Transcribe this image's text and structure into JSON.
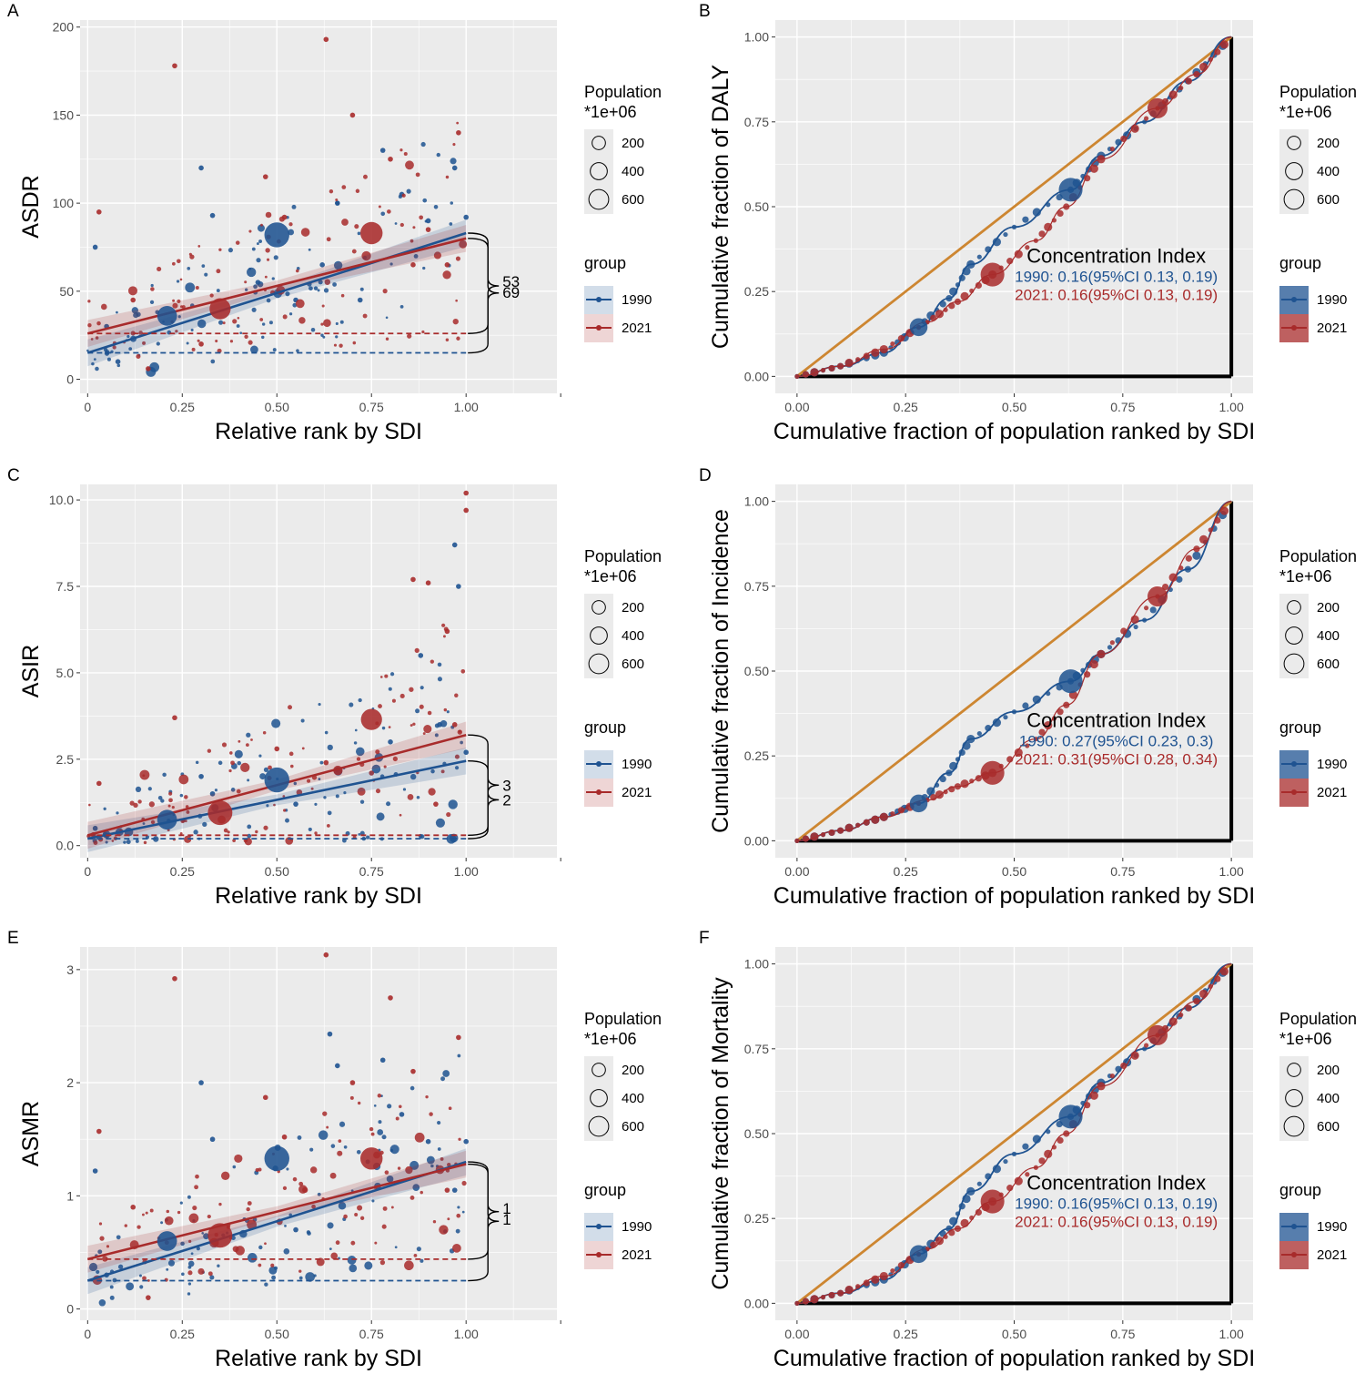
{
  "colors": {
    "1990": "#1f5391",
    "2021": "#a82b2b",
    "equality": "#cd8631",
    "bg": "#ebebeb"
  },
  "legend": {
    "population_title_line1": "Population",
    "population_title_line2": "*1e+06",
    "population_sizes": [
      "200",
      "400",
      "600"
    ],
    "group_title": "group",
    "groups": [
      "1990",
      "2021"
    ]
  },
  "chart_data": [
    {
      "panel": "A",
      "type": "scatter",
      "ylabel": "ASDR",
      "xlabel": "Relative rank by SDI",
      "xlim": [
        -0.02,
        1.24
      ],
      "ylim": [
        -8,
        204
      ],
      "xticks": [
        0,
        0.25,
        0.5,
        0.75,
        1.0
      ],
      "xtick_labels": [
        "0",
        "0.25",
        "0.50",
        "0.75",
        "1.00"
      ],
      "yticks": [
        0,
        50,
        100,
        150,
        200
      ],
      "ytick_labels": [
        "0",
        "50",
        "100",
        "150",
        "200"
      ],
      "regression": {
        "1990": {
          "x": [
            0,
            1
          ],
          "y": [
            15,
            83
          ]
        },
        "2021": {
          "x": [
            0,
            1
          ],
          "y": [
            26,
            80
          ]
        }
      },
      "dashed": {
        "1990": 15,
        "2021": 26
      },
      "brace_labels": [
        "53",
        "69"
      ],
      "big_points": [
        {
          "group": "1990",
          "x": 0.21,
          "y": 36,
          "pop": 350
        },
        {
          "group": "1990",
          "x": 0.5,
          "y": 82,
          "pop": 650
        },
        {
          "group": "2021",
          "x": 0.35,
          "y": 40,
          "pop": 420
        },
        {
          "group": "2021",
          "x": 0.75,
          "y": 83,
          "pop": 480
        }
      ],
      "sample_points": {
        "1990": [
          [
            0.02,
            75
          ],
          [
            0.05,
            30
          ],
          [
            0.08,
            10
          ],
          [
            0.3,
            120
          ],
          [
            0.33,
            93
          ],
          [
            0.45,
            55
          ],
          [
            0.55,
            45
          ],
          [
            0.62,
            65
          ],
          [
            0.66,
            100
          ],
          [
            0.72,
            45
          ],
          [
            0.78,
            130
          ],
          [
            0.83,
            105
          ],
          [
            0.9,
            90
          ],
          [
            0.97,
            120
          ],
          [
            1.0,
            92
          ]
        ],
        "2021": [
          [
            0.03,
            95
          ],
          [
            0.12,
            45
          ],
          [
            0.16,
            6
          ],
          [
            0.23,
            178
          ],
          [
            0.3,
            20
          ],
          [
            0.47,
            115
          ],
          [
            0.52,
            92
          ],
          [
            0.63,
            193
          ],
          [
            0.7,
            150
          ],
          [
            0.8,
            125
          ],
          [
            0.86,
            65
          ],
          [
            0.9,
            85
          ],
          [
            0.95,
            65
          ],
          [
            0.98,
            140
          ]
        ]
      }
    },
    {
      "panel": "B",
      "type": "line",
      "ylabel": "Cumulative fraction of DALY",
      "xlabel": "Cumulative fraction of population ranked by SDI",
      "xlim": [
        -0.05,
        1.05
      ],
      "ylim": [
        -0.05,
        1.05
      ],
      "xticks": [
        0,
        0.25,
        0.5,
        0.75,
        1.0
      ],
      "xtick_labels": [
        "0.00",
        "0.25",
        "0.50",
        "0.75",
        "1.00"
      ],
      "yticks": [
        0,
        0.25,
        0.5,
        0.75,
        1.0
      ],
      "ytick_labels": [
        "0.00",
        "0.25",
        "0.50",
        "0.75",
        "1.00"
      ],
      "ci_title": "Concentration Index",
      "ci_1990": "1990: 0.16(95%CI 0.13, 0.19)",
      "ci_2021": "2021: 0.16(95%CI 0.13, 0.19)",
      "curve_1990": [
        [
          0,
          0
        ],
        [
          0.1,
          0.03
        ],
        [
          0.2,
          0.07
        ],
        [
          0.28,
          0.145
        ],
        [
          0.35,
          0.23
        ],
        [
          0.4,
          0.33
        ],
        [
          0.5,
          0.44
        ],
        [
          0.63,
          0.55
        ],
        [
          0.7,
          0.65
        ],
        [
          0.8,
          0.75
        ],
        [
          0.9,
          0.87
        ],
        [
          1.0,
          1.0
        ]
      ],
      "curve_2021": [
        [
          0,
          0
        ],
        [
          0.1,
          0.03
        ],
        [
          0.2,
          0.08
        ],
        [
          0.3,
          0.16
        ],
        [
          0.37,
          0.22
        ],
        [
          0.45,
          0.3
        ],
        [
          0.55,
          0.4
        ],
        [
          0.62,
          0.5
        ],
        [
          0.7,
          0.64
        ],
        [
          0.83,
          0.79
        ],
        [
          0.92,
          0.89
        ],
        [
          1.0,
          1.0
        ]
      ],
      "big_points": [
        {
          "group": "1990",
          "x": 0.28,
          "y": 0.145,
          "pop": 300
        },
        {
          "group": "1990",
          "x": 0.63,
          "y": 0.55,
          "pop": 650
        },
        {
          "group": "2021",
          "x": 0.45,
          "y": 0.3,
          "pop": 650
        },
        {
          "group": "2021",
          "x": 0.83,
          "y": 0.79,
          "pop": 420
        }
      ]
    },
    {
      "panel": "C",
      "type": "scatter",
      "ylabel": "ASIR",
      "xlabel": "Relative rank by SDI",
      "xlim": [
        -0.02,
        1.24
      ],
      "ylim": [
        -0.35,
        10.45
      ],
      "xticks": [
        0,
        0.25,
        0.5,
        0.75,
        1.0
      ],
      "xtick_labels": [
        "0",
        "0.25",
        "0.50",
        "0.75",
        "1.00"
      ],
      "yticks": [
        0,
        2.5,
        5,
        7.5,
        10
      ],
      "ytick_labels": [
        "0.0",
        "2.5",
        "5.0",
        "7.5",
        "10.0"
      ],
      "regression": {
        "1990": {
          "x": [
            0,
            1
          ],
          "y": [
            0.2,
            2.45
          ]
        },
        "2021": {
          "x": [
            0,
            1
          ],
          "y": [
            0.3,
            3.2
          ]
        }
      },
      "dashed": {
        "1990": 0.2,
        "2021": 0.3
      },
      "brace_labels": [
        "3",
        "2"
      ],
      "big_points": [
        {
          "group": "1990",
          "x": 0.21,
          "y": 0.75,
          "pop": 350
        },
        {
          "group": "1990",
          "x": 0.5,
          "y": 1.9,
          "pop": 650
        },
        {
          "group": "2021",
          "x": 0.35,
          "y": 0.95,
          "pop": 620
        },
        {
          "group": "2021",
          "x": 0.75,
          "y": 3.65,
          "pop": 420
        }
      ],
      "sample_points": {
        "1990": [
          [
            0.02,
            0.5
          ],
          [
            0.05,
            0.3
          ],
          [
            0.3,
            2.0
          ],
          [
            0.33,
            1.5
          ],
          [
            0.55,
            1.2
          ],
          [
            0.66,
            2.2
          ],
          [
            0.8,
            3.0
          ],
          [
            0.88,
            5.5
          ],
          [
            0.93,
            3.5
          ],
          [
            0.97,
            8.7
          ],
          [
            0.98,
            7.5
          ],
          [
            1.0,
            2.7
          ]
        ],
        "2021": [
          [
            0.03,
            1.8
          ],
          [
            0.23,
            3.7
          ],
          [
            0.5,
            2.8
          ],
          [
            0.63,
            2.4
          ],
          [
            0.75,
            2.1
          ],
          [
            0.86,
            7.7
          ],
          [
            0.9,
            7.6
          ],
          [
            0.95,
            6.2
          ],
          [
            1.0,
            10.2
          ],
          [
            1.0,
            9.7
          ],
          [
            0.97,
            3.5
          ],
          [
            0.92,
            1.2
          ]
        ]
      }
    },
    {
      "panel": "D",
      "type": "line",
      "ylabel": "Cumulative fraction of Incidence",
      "xlabel": "Cumulative fraction of population ranked by SDI",
      "xlim": [
        -0.05,
        1.05
      ],
      "ylim": [
        -0.05,
        1.05
      ],
      "xticks": [
        0,
        0.25,
        0.5,
        0.75,
        1.0
      ],
      "xtick_labels": [
        "0.00",
        "0.25",
        "0.50",
        "0.75",
        "1.00"
      ],
      "yticks": [
        0,
        0.25,
        0.5,
        0.75,
        1.0
      ],
      "ytick_labels": [
        "0.00",
        "0.25",
        "0.50",
        "0.75",
        "1.00"
      ],
      "ci_title": "Concentration Index",
      "ci_1990": "1990: 0.27(95%CI 0.23, 0.3)",
      "ci_2021": "2021: 0.31(95%CI 0.28, 0.34)",
      "curve_1990": [
        [
          0,
          0
        ],
        [
          0.1,
          0.03
        ],
        [
          0.2,
          0.07
        ],
        [
          0.28,
          0.11
        ],
        [
          0.35,
          0.2
        ],
        [
          0.4,
          0.3
        ],
        [
          0.5,
          0.38
        ],
        [
          0.63,
          0.47
        ],
        [
          0.7,
          0.55
        ],
        [
          0.8,
          0.65
        ],
        [
          0.9,
          0.8
        ],
        [
          1.0,
          1.0
        ]
      ],
      "curve_2021": [
        [
          0,
          0
        ],
        [
          0.1,
          0.03
        ],
        [
          0.2,
          0.07
        ],
        [
          0.3,
          0.12
        ],
        [
          0.37,
          0.16
        ],
        [
          0.45,
          0.2
        ],
        [
          0.55,
          0.3
        ],
        [
          0.62,
          0.4
        ],
        [
          0.7,
          0.55
        ],
        [
          0.83,
          0.72
        ],
        [
          0.92,
          0.86
        ],
        [
          1.0,
          1.0
        ]
      ],
      "big_points": [
        {
          "group": "1990",
          "x": 0.28,
          "y": 0.11,
          "pop": 300
        },
        {
          "group": "1990",
          "x": 0.63,
          "y": 0.47,
          "pop": 650
        },
        {
          "group": "2021",
          "x": 0.45,
          "y": 0.2,
          "pop": 650
        },
        {
          "group": "2021",
          "x": 0.83,
          "y": 0.72,
          "pop": 420
        }
      ]
    },
    {
      "panel": "E",
      "type": "scatter",
      "ylabel": "ASMR",
      "xlabel": "Relative rank by SDI",
      "xlim": [
        -0.02,
        1.24
      ],
      "ylim": [
        -0.1,
        3.2
      ],
      "xticks": [
        0,
        0.25,
        0.5,
        0.75,
        1.0
      ],
      "xtick_labels": [
        "0",
        "0.25",
        "0.50",
        "0.75",
        "1.00"
      ],
      "yticks": [
        0,
        1,
        2,
        3
      ],
      "ytick_labels": [
        "0",
        "1",
        "2",
        "3"
      ],
      "regression": {
        "1990": {
          "x": [
            0,
            1
          ],
          "y": [
            0.25,
            1.3
          ]
        },
        "2021": {
          "x": [
            0,
            1
          ],
          "y": [
            0.44,
            1.28
          ]
        }
      },
      "dashed": {
        "1990": 0.25,
        "2021": 0.44
      },
      "brace_labels": [
        "1",
        "1"
      ],
      "big_points": [
        {
          "group": "1990",
          "x": 0.21,
          "y": 0.6,
          "pop": 350
        },
        {
          "group": "1990",
          "x": 0.5,
          "y": 1.33,
          "pop": 650
        },
        {
          "group": "2021",
          "x": 0.35,
          "y": 0.65,
          "pop": 620
        },
        {
          "group": "2021",
          "x": 0.75,
          "y": 1.33,
          "pop": 480
        }
      ],
      "sample_points": {
        "1990": [
          [
            0.02,
            1.22
          ],
          [
            0.05,
            0.3
          ],
          [
            0.3,
            2.0
          ],
          [
            0.33,
            1.5
          ],
          [
            0.55,
            0.7
          ],
          [
            0.64,
            2.43
          ],
          [
            0.66,
            2.15
          ],
          [
            0.78,
            2.2
          ],
          [
            0.83,
            1.72
          ],
          [
            0.9,
            1.48
          ],
          [
            0.97,
            1.05
          ],
          [
            1.0,
            1.48
          ]
        ],
        "2021": [
          [
            0.03,
            1.57
          ],
          [
            0.12,
            0.9
          ],
          [
            0.16,
            0.1
          ],
          [
            0.23,
            2.92
          ],
          [
            0.47,
            1.87
          ],
          [
            0.52,
            1.52
          ],
          [
            0.63,
            3.13
          ],
          [
            0.7,
            2.0
          ],
          [
            0.8,
            2.75
          ],
          [
            0.86,
            2.1
          ],
          [
            0.95,
            1.05
          ],
          [
            0.98,
            2.4
          ]
        ]
      }
    },
    {
      "panel": "F",
      "type": "line",
      "ylabel": "Cumulative fraction of Mortality",
      "xlabel": "Cumulative fraction of population ranked by SDI",
      "xlim": [
        -0.05,
        1.05
      ],
      "ylim": [
        -0.05,
        1.05
      ],
      "xticks": [
        0,
        0.25,
        0.5,
        0.75,
        1.0
      ],
      "xtick_labels": [
        "0.00",
        "0.25",
        "0.50",
        "0.75",
        "1.00"
      ],
      "yticks": [
        0,
        0.25,
        0.5,
        0.75,
        1.0
      ],
      "ytick_labels": [
        "0.00",
        "0.25",
        "0.50",
        "0.75",
        "1.00"
      ],
      "ci_title": "Concentration Index",
      "ci_1990": "1990: 0.16(95%CI 0.13, 0.19)",
      "ci_2021": "2021: 0.16(95%CI 0.13, 0.19)",
      "curve_1990": [
        [
          0,
          0
        ],
        [
          0.1,
          0.03
        ],
        [
          0.2,
          0.07
        ],
        [
          0.28,
          0.145
        ],
        [
          0.35,
          0.22
        ],
        [
          0.4,
          0.33
        ],
        [
          0.5,
          0.44
        ],
        [
          0.63,
          0.55
        ],
        [
          0.7,
          0.65
        ],
        [
          0.8,
          0.75
        ],
        [
          0.9,
          0.87
        ],
        [
          1.0,
          1.0
        ]
      ],
      "curve_2021": [
        [
          0,
          0
        ],
        [
          0.1,
          0.03
        ],
        [
          0.2,
          0.08
        ],
        [
          0.3,
          0.16
        ],
        [
          0.37,
          0.22
        ],
        [
          0.45,
          0.3
        ],
        [
          0.55,
          0.4
        ],
        [
          0.62,
          0.5
        ],
        [
          0.7,
          0.64
        ],
        [
          0.83,
          0.79
        ],
        [
          0.92,
          0.89
        ],
        [
          1.0,
          1.0
        ]
      ],
      "big_points": [
        {
          "group": "1990",
          "x": 0.28,
          "y": 0.145,
          "pop": 300
        },
        {
          "group": "1990",
          "x": 0.63,
          "y": 0.55,
          "pop": 650
        },
        {
          "group": "2021",
          "x": 0.45,
          "y": 0.3,
          "pop": 650
        },
        {
          "group": "2021",
          "x": 0.83,
          "y": 0.79,
          "pop": 420
        }
      ]
    }
  ]
}
